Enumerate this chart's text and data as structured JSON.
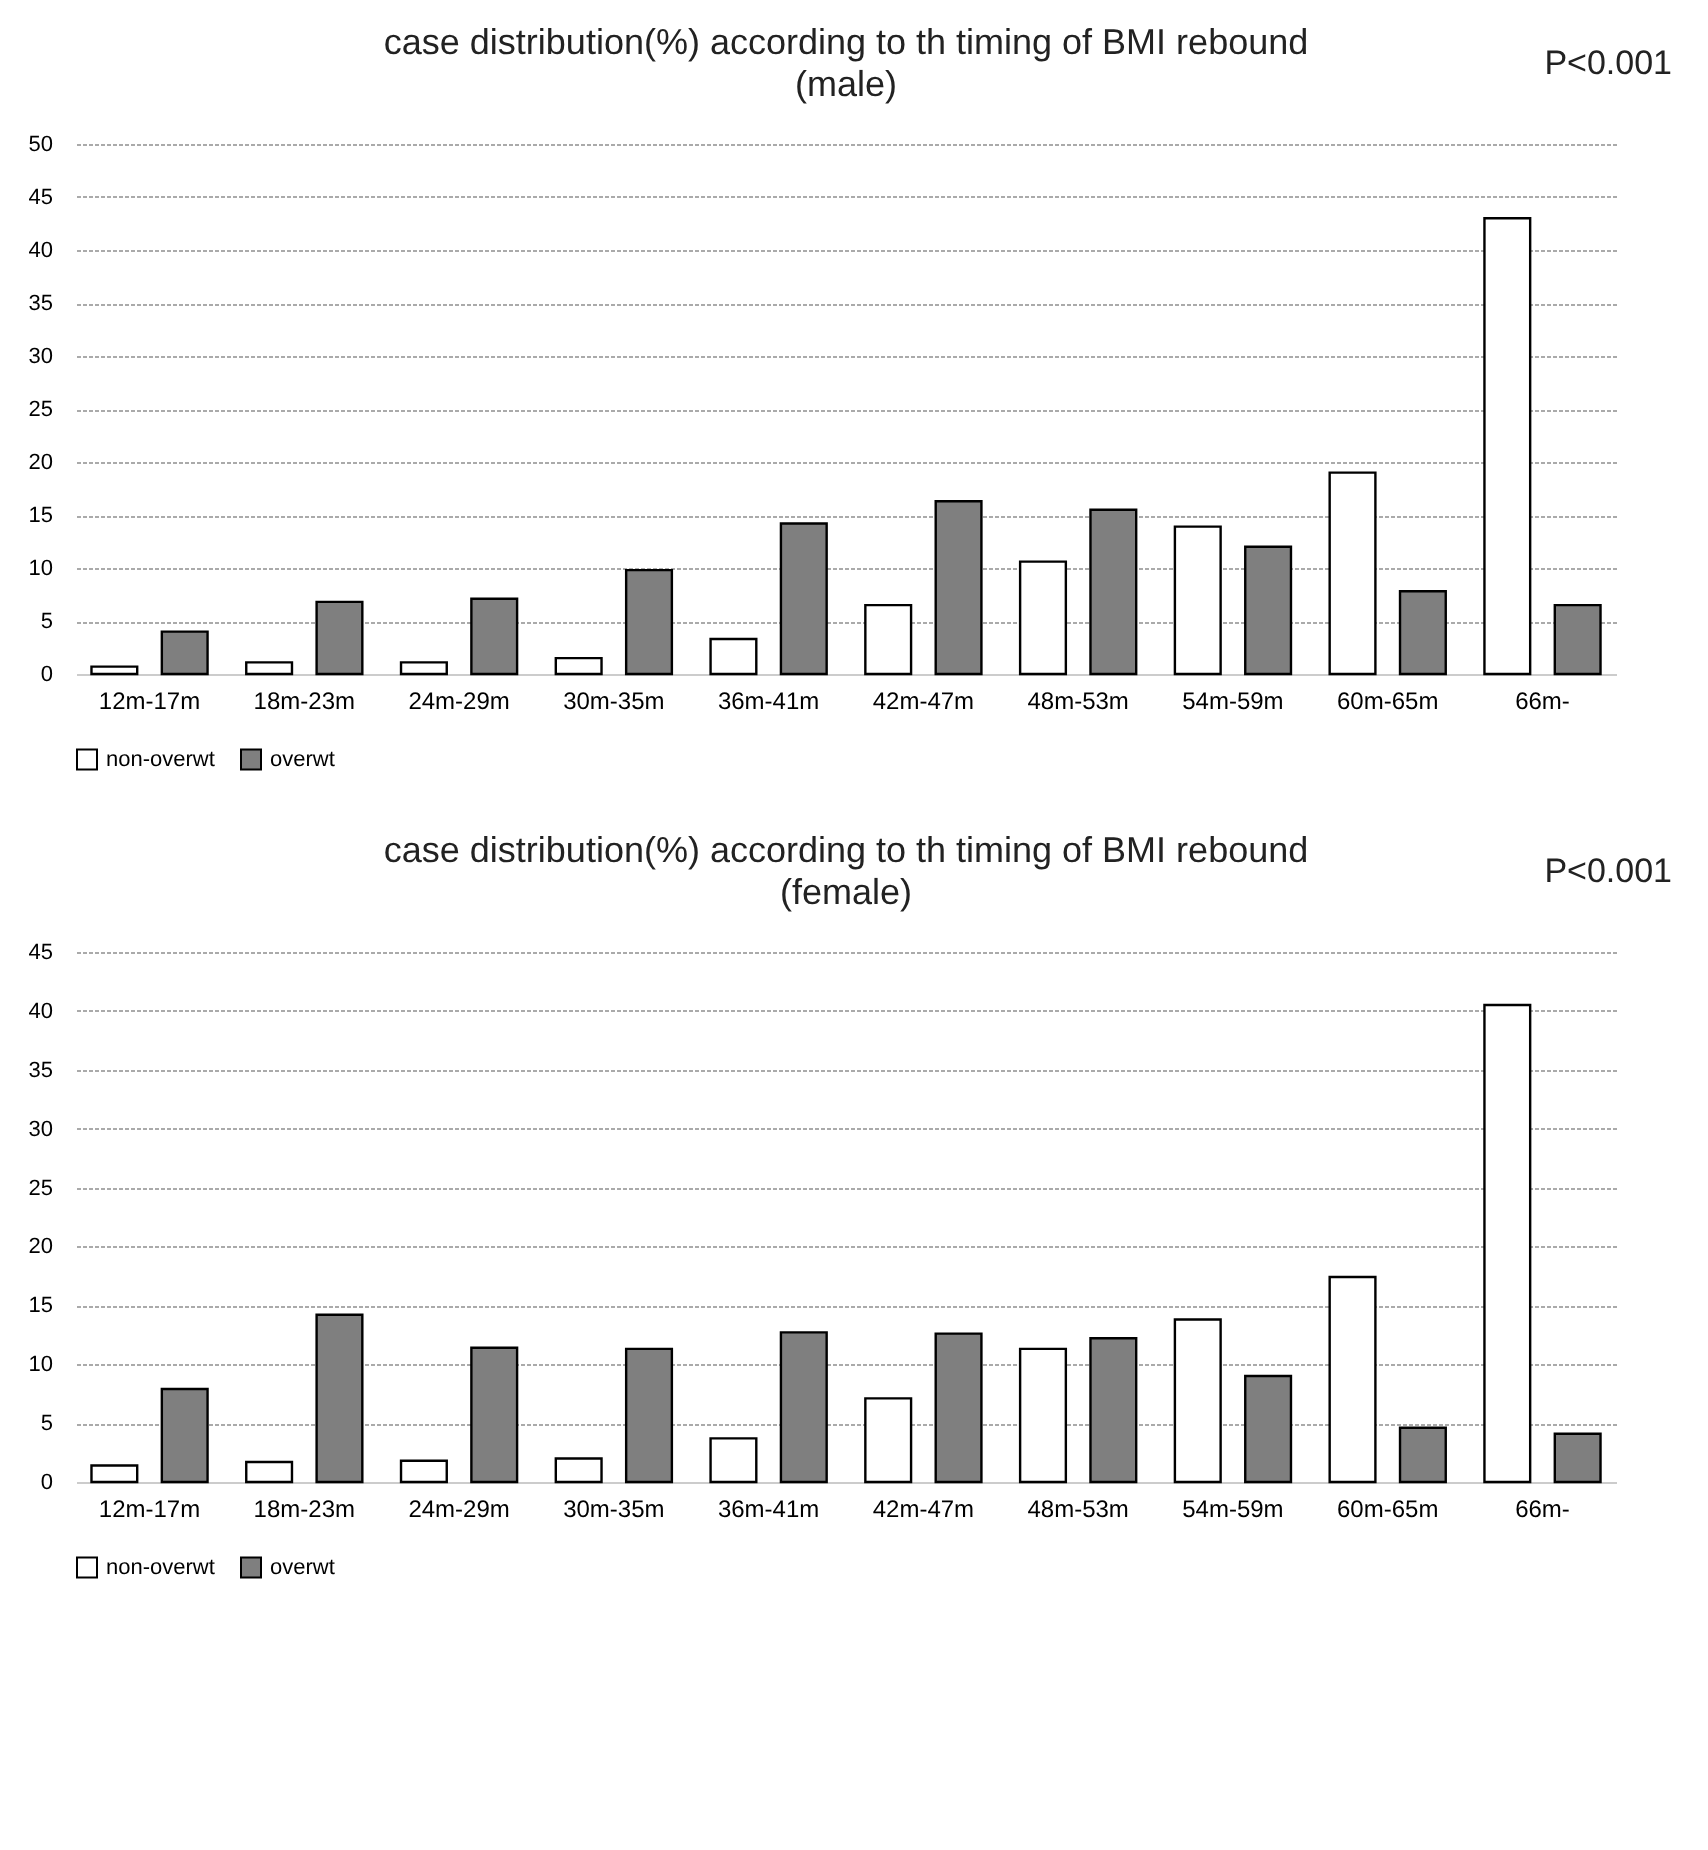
{
  "chart_data": [
    {
      "type": "bar",
      "title": "case distribution(%) according to th timing of BMI rebound",
      "subtitle": "(male)",
      "annotations": [
        "P<0.001"
      ],
      "categories": [
        "12m-17m",
        "18m-23m",
        "24m-29m",
        "30m-35m",
        "36m-41m",
        "42m-47m",
        "48m-53m",
        "54m-59m",
        "60m-65m",
        "66m-"
      ],
      "series": [
        {
          "name": "non-overwt",
          "color": "#ffffff",
          "values": [
            0.7,
            1.1,
            1.1,
            1.5,
            3.3,
            6.5,
            10.6,
            13.9,
            19,
            43
          ]
        },
        {
          "name": "overwt",
          "color": "#7f7f7f",
          "values": [
            4,
            6.8,
            7.1,
            9.8,
            14.2,
            16.3,
            15.5,
            12,
            7.8,
            6.5
          ]
        }
      ],
      "ylim": [
        0,
        50
      ],
      "yticks": [
        0,
        5,
        10,
        15,
        20,
        25,
        30,
        35,
        40,
        45,
        50
      ],
      "grid": "y",
      "legend": "bottom"
    },
    {
      "type": "bar",
      "title": "case distribution(%) according to th timing of BMI rebound",
      "subtitle": "(female)",
      "annotations": [
        "P<0.001"
      ],
      "categories": [
        "12m-17m",
        "18m-23m",
        "24m-29m",
        "30m-35m",
        "36m-41m",
        "42m-47m",
        "48m-53m",
        "54m-59m",
        "60m-65m",
        "66m-"
      ],
      "series": [
        {
          "name": "non-overwt",
          "color": "#ffffff",
          "values": [
            1.4,
            1.7,
            1.8,
            2,
            3.7,
            7.1,
            11.3,
            13.8,
            17.4,
            40.5
          ]
        },
        {
          "name": "overwt",
          "color": "#7f7f7f",
          "values": [
            7.9,
            14.2,
            11.4,
            11.3,
            12.7,
            12.6,
            12.2,
            9,
            4.6,
            4.1
          ]
        }
      ],
      "ylim": [
        0,
        45
      ],
      "yticks": [
        0,
        5,
        10,
        15,
        20,
        25,
        30,
        35,
        40,
        45
      ],
      "grid": "y",
      "legend": "bottom"
    }
  ]
}
